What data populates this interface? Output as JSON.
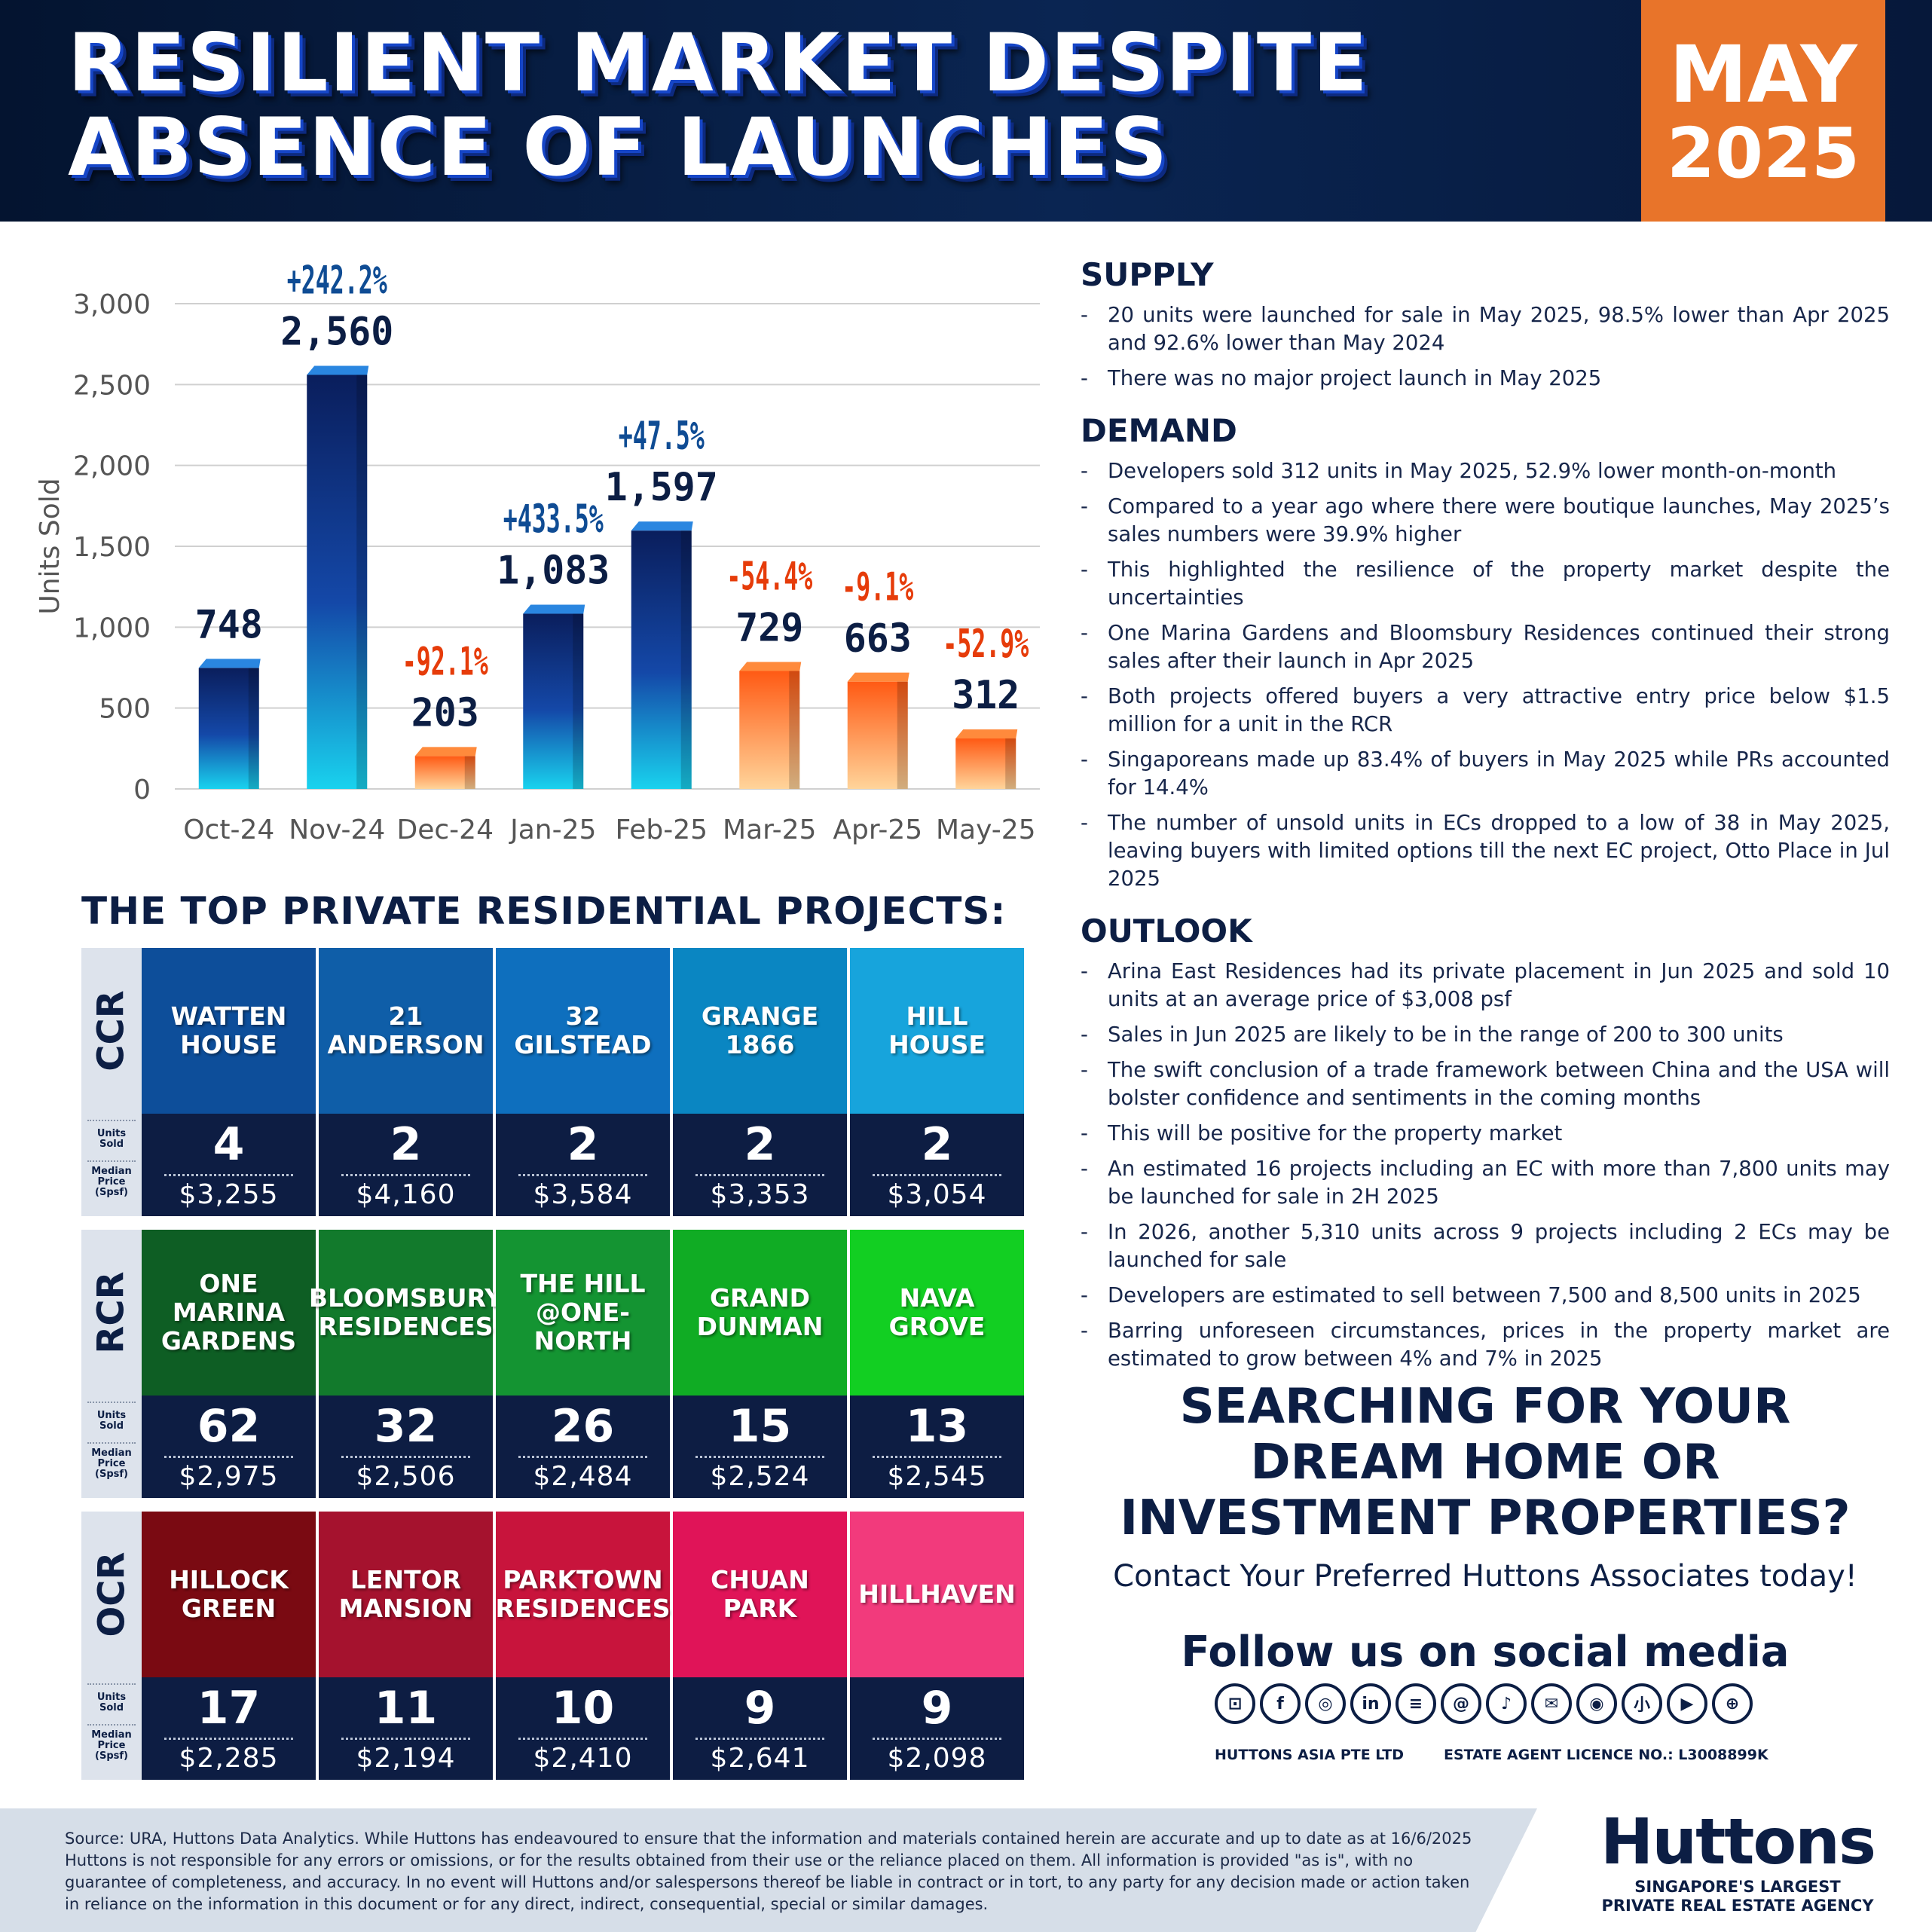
{
  "header": {
    "title_line1": "RESILIENT MARKET DESPITE",
    "title_line2": "ABSENCE OF LAUNCHES",
    "month": "MAY",
    "year": "2025"
  },
  "colors": {
    "navy": "#0c1e44",
    "orange_badge": "#e8742a",
    "bar_up_top": "#0a1e5c",
    "bar_up_bottom": "#19d2ee",
    "bar_down_top": "#ff5a14",
    "bar_down_bottom": "#ffd49a",
    "pct_up": "#0f4c94",
    "pct_down": "#e63c0a"
  },
  "chart_data": {
    "type": "bar",
    "ylabel": "Units Sold",
    "xlabel": "",
    "ylim": [
      0,
      3000
    ],
    "yticks": [
      "0",
      "500",
      "1,000",
      "1,500",
      "2,000",
      "2,500",
      "3,000"
    ],
    "grid": true,
    "categories": [
      "Oct-24",
      "Nov-24",
      "Dec-24",
      "Jan-25",
      "Feb-25",
      "Mar-25",
      "Apr-25",
      "May-25"
    ],
    "values": [
      748,
      2560,
      203,
      1083,
      1597,
      729,
      663,
      312
    ],
    "value_labels": [
      "748",
      "2,560",
      "203",
      "1,083",
      "1,597",
      "729",
      "663",
      "312"
    ],
    "change_labels": [
      "",
      "+242.2%",
      "-92.1%",
      "+433.5%",
      "+47.5%",
      "-54.4%",
      "-9.1%",
      "-52.9%"
    ],
    "bar_style": [
      "blue",
      "blue",
      "orange",
      "blue",
      "blue",
      "orange",
      "orange",
      "orange"
    ]
  },
  "projects": {
    "title": "THE TOP PRIVATE RESIDENTIAL PROJECTS:",
    "units_label": "Units\nSold",
    "price_label": "Median\nPrice\n(Spsf)",
    "regions": [
      {
        "name": "CCR",
        "items": [
          {
            "name": "WATTEN\nHOUSE",
            "units": "4",
            "price": "$3,255",
            "color": "#0d4e9a"
          },
          {
            "name": "21\nANDERSON",
            "units": "2",
            "price": "$4,160",
            "color": "#0f5ea8"
          },
          {
            "name": "32\nGILSTEAD",
            "units": "2",
            "price": "$3,584",
            "color": "#0e6fbe"
          },
          {
            "name": "GRANGE\n1866",
            "units": "2",
            "price": "$3,353",
            "color": "#0a86c2"
          },
          {
            "name": "HILL\nHOUSE",
            "units": "2",
            "price": "$3,054",
            "color": "#17a4dc"
          }
        ]
      },
      {
        "name": "RCR",
        "items": [
          {
            "name": "ONE\nMARINA\nGARDENS",
            "units": "62",
            "price": "$2,975",
            "color": "#0e5e24"
          },
          {
            "name": "BLOOMSBURY\nRESIDENCES",
            "units": "32",
            "price": "$2,506",
            "color": "#127a2c"
          },
          {
            "name": "THE HILL\n@ONE-NORTH",
            "units": "26",
            "price": "$2,484",
            "color": "#149432"
          },
          {
            "name": "GRAND\nDUNMAN",
            "units": "15",
            "price": "$2,524",
            "color": "#10ac24"
          },
          {
            "name": "NAVA\nGROVE",
            "units": "13",
            "price": "$2,545",
            "color": "#12cf22"
          }
        ]
      },
      {
        "name": "OCR",
        "items": [
          {
            "name": "HILLOCK\nGREEN",
            "units": "17",
            "price": "$2,285",
            "color": "#7a0a12"
          },
          {
            "name": "LENTOR\nMANSION",
            "units": "11",
            "price": "$2,194",
            "color": "#a5122e"
          },
          {
            "name": "PARKTOWN\nRESIDENCES",
            "units": "10",
            "price": "$2,410",
            "color": "#c8143c"
          },
          {
            "name": "CHUAN\nPARK",
            "units": "9",
            "price": "$2,641",
            "color": "#e01458"
          },
          {
            "name": "HILLHAVEN",
            "units": "9",
            "price": "$2,098",
            "color": "#f23a7c"
          }
        ]
      }
    ]
  },
  "supply": {
    "heading": "SUPPLY",
    "bullets": [
      "20 units were launched for sale in May 2025, 98.5% lower than Apr 2025 and 92.6% lower than May 2024",
      "There was no major project launch in May 2025"
    ]
  },
  "demand": {
    "heading": "DEMAND",
    "bullets": [
      "Developers sold 312 units in May 2025, 52.9% lower month-on-month",
      "Compared to a year ago where there were boutique launches, May 2025’s sales numbers were 39.9% higher",
      "This highlighted the resilience of the property market despite the uncertainties",
      "One Marina Gardens and Bloomsbury Residences continued their strong sales after their launch in Apr 2025",
      "Both projects offered buyers a very attractive entry price below $1.5 million for a unit in the RCR",
      "Singaporeans made up 83.4% of buyers in May 2025 while PRs accounted for 14.4%",
      "The number of unsold units in ECs dropped to a low of 38 in May 2025, leaving buyers with limited options till the next EC project, Otto Place in Jul 2025"
    ]
  },
  "outlook": {
    "heading": "OUTLOOK",
    "bullets": [
      "Arina East Residences had its private placement in Jun 2025 and sold 10 units at an average price of $3,008 psf",
      "Sales in Jun 2025 are likely to be in the range of 200 to 300 units",
      "The swift conclusion of a trade framework between China and the USA will bolster confidence and sentiments in the coming months",
      "This will be positive for the property market",
      "An estimated 16 projects including an EC with more than 7,800 units may be launched for sale in 2H 2025",
      "In 2026, another 5,310 units across 9 projects including 2 ECs may be launched for sale",
      "Developers are estimated to sell between 7,500 and 8,500 units in 2025",
      "Barring unforeseen circumstances, prices in the property market are estimated to grow between 4% and 7% in 2025"
    ]
  },
  "cta": {
    "headline": "SEARCHING FOR YOUR\nDREAM HOME OR\nINVESTMENT PROPERTIES?",
    "subline": "Contact Your Preferred Huttons Associates today!"
  },
  "social": {
    "heading": "Follow us on social media",
    "icons": [
      {
        "name": "bilibili-icon",
        "glyph": "⊡"
      },
      {
        "name": "facebook-icon",
        "glyph": "f"
      },
      {
        "name": "instagram-icon",
        "glyph": "◎"
      },
      {
        "name": "linkedin-icon",
        "glyph": "in"
      },
      {
        "name": "lemon8-icon",
        "glyph": "≡"
      },
      {
        "name": "threads-icon",
        "glyph": "@"
      },
      {
        "name": "tiktok-icon",
        "glyph": "♪"
      },
      {
        "name": "wechat-icon",
        "glyph": "✉"
      },
      {
        "name": "weibo-icon",
        "glyph": "◉"
      },
      {
        "name": "xiaohongshu-icon",
        "glyph": "小"
      },
      {
        "name": "youtube-icon",
        "glyph": "▶"
      },
      {
        "name": "website-icon",
        "glyph": "⊕"
      }
    ],
    "company": "HUTTONS ASIA PTE LTD",
    "licence": "ESTATE AGENT LICENCE NO.: L3008899K"
  },
  "footer": {
    "disclaimer": "Source: URA, Huttons Data Analytics. While Huttons has endeavoured to ensure that the information and materials contained herein are accurate and up to date as at 16/6/2025 Huttons is not responsible for any errors or omissions, or for the results obtained from their use or the reliance placed on them. All information is provided \"as is\", with no guarantee of completeness, and accuracy. In no event will Huttons and/or salespersons thereof be liable in contract or in tort, to any party for any decision made or action taken in reliance on the information in this document or for any direct, indirect, consequential, special or similar damages.",
    "logo_word": "Huttons",
    "logo_tagline": "SINGAPORE'S LARGEST\nPRIVATE REAL ESTATE AGENCY"
  }
}
